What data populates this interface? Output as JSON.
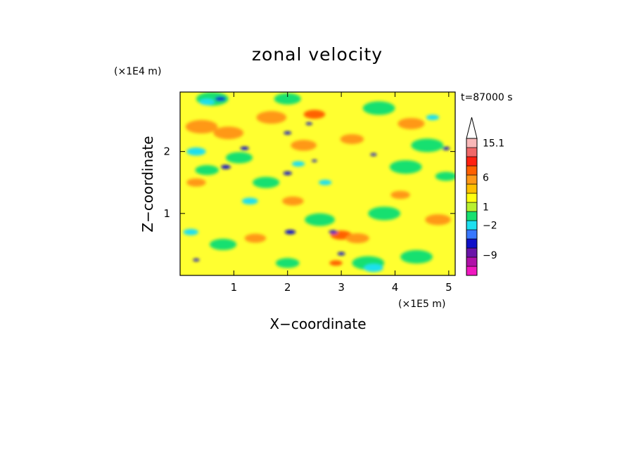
{
  "chart_data": {
    "type": "heatmap",
    "title": "zonal velocity",
    "xlabel": "X−coordinate",
    "ylabel": "Z−coordinate",
    "x_unit": "(×1E5 m)",
    "y_unit": "(×1E4 m)",
    "time_label": "t=87000 s",
    "xlim": [
      0,
      5.12
    ],
    "ylim": [
      0,
      2.96
    ],
    "x_ticks": [
      1,
      2,
      3,
      4,
      5
    ],
    "y_ticks": [
      1,
      2
    ],
    "colorbar": {
      "colors": [
        "#f018c0",
        "#b010a8",
        "#6a14a8",
        "#1010c8",
        "#3878ff",
        "#1ee0f0",
        "#18e070",
        "#b8f030",
        "#ffff10",
        "#ffc000",
        "#ff9818",
        "#ff6000",
        "#ff2010",
        "#f06868",
        "#f8b8b8"
      ],
      "tick_labels": [
        {
          "text": "−9",
          "level": 2.25
        },
        {
          "text": "−2",
          "level": 5.5
        },
        {
          "text": "1",
          "level": 7.5
        },
        {
          "text": "6",
          "level": 10.75
        },
        {
          "text": "15.1",
          "level": 14.5
        }
      ],
      "extend": "max"
    },
    "field": {
      "background_color": "#ffff30",
      "blobs": [
        {
          "x": 0.4,
          "z": 2.4,
          "color": "#ff9818",
          "size": 0.3
        },
        {
          "x": 0.9,
          "z": 2.3,
          "color": "#ff9818",
          "size": 0.28
        },
        {
          "x": 1.7,
          "z": 2.55,
          "color": "#ff9818",
          "size": 0.28
        },
        {
          "x": 2.5,
          "z": 2.6,
          "color": "#ff6000",
          "size": 0.2
        },
        {
          "x": 2.3,
          "z": 2.1,
          "color": "#ff9818",
          "size": 0.24
        },
        {
          "x": 3.2,
          "z": 2.2,
          "color": "#ff9818",
          "size": 0.22
        },
        {
          "x": 4.3,
          "z": 2.45,
          "color": "#ff9818",
          "size": 0.25
        },
        {
          "x": 3.0,
          "z": 0.65,
          "color": "#ff6000",
          "size": 0.2
        },
        {
          "x": 3.3,
          "z": 0.6,
          "color": "#ff9818",
          "size": 0.22
        },
        {
          "x": 2.9,
          "z": 0.2,
          "color": "#ff6000",
          "size": 0.12
        },
        {
          "x": 4.8,
          "z": 0.9,
          "color": "#ff9818",
          "size": 0.24
        },
        {
          "x": 2.1,
          "z": 1.2,
          "color": "#ff9818",
          "size": 0.2
        },
        {
          "x": 0.3,
          "z": 1.5,
          "color": "#ff9818",
          "size": 0.18
        },
        {
          "x": 1.4,
          "z": 0.6,
          "color": "#ff9818",
          "size": 0.2
        },
        {
          "x": 4.1,
          "z": 1.3,
          "color": "#ff9818",
          "size": 0.18
        },
        {
          "x": 0.6,
          "z": 2.85,
          "color": "#18e070",
          "size": 0.3
        },
        {
          "x": 2.0,
          "z": 2.85,
          "color": "#18e070",
          "size": 0.25
        },
        {
          "x": 3.7,
          "z": 2.7,
          "color": "#18e070",
          "size": 0.3
        },
        {
          "x": 4.6,
          "z": 2.1,
          "color": "#18e070",
          "size": 0.3
        },
        {
          "x": 4.2,
          "z": 1.75,
          "color": "#18e070",
          "size": 0.3
        },
        {
          "x": 3.8,
          "z": 1.0,
          "color": "#18e070",
          "size": 0.3
        },
        {
          "x": 1.6,
          "z": 1.5,
          "color": "#18e070",
          "size": 0.25
        },
        {
          "x": 1.1,
          "z": 1.9,
          "color": "#18e070",
          "size": 0.25
        },
        {
          "x": 0.5,
          "z": 1.7,
          "color": "#18e070",
          "size": 0.22
        },
        {
          "x": 2.6,
          "z": 0.9,
          "color": "#18e070",
          "size": 0.28
        },
        {
          "x": 3.5,
          "z": 0.2,
          "color": "#18e070",
          "size": 0.3
        },
        {
          "x": 4.4,
          "z": 0.3,
          "color": "#18e070",
          "size": 0.3
        },
        {
          "x": 0.8,
          "z": 0.5,
          "color": "#18e070",
          "size": 0.25
        },
        {
          "x": 2.0,
          "z": 0.2,
          "color": "#18e070",
          "size": 0.22
        },
        {
          "x": 4.95,
          "z": 1.6,
          "color": "#18e070",
          "size": 0.2
        },
        {
          "x": 0.3,
          "z": 2.0,
          "color": "#1ee0f0",
          "size": 0.18
        },
        {
          "x": 0.5,
          "z": 2.8,
          "color": "#1ee0f0",
          "size": 0.14
        },
        {
          "x": 1.3,
          "z": 1.2,
          "color": "#1ee0f0",
          "size": 0.15
        },
        {
          "x": 2.2,
          "z": 1.8,
          "color": "#1ee0f0",
          "size": 0.12
        },
        {
          "x": 3.6,
          "z": 0.12,
          "color": "#1ee0f0",
          "size": 0.18
        },
        {
          "x": 4.7,
          "z": 2.55,
          "color": "#1ee0f0",
          "size": 0.12
        },
        {
          "x": 0.2,
          "z": 0.7,
          "color": "#1ee0f0",
          "size": 0.14
        },
        {
          "x": 2.7,
          "z": 1.5,
          "color": "#1ee0f0",
          "size": 0.12
        },
        {
          "x": 0.75,
          "z": 2.85,
          "color": "#1010c8",
          "size": 0.1
        },
        {
          "x": 1.2,
          "z": 2.05,
          "color": "#1010c8",
          "size": 0.08
        },
        {
          "x": 0.85,
          "z": 1.75,
          "color": "#1010c8",
          "size": 0.09
        },
        {
          "x": 2.0,
          "z": 2.3,
          "color": "#1010c8",
          "size": 0.07
        },
        {
          "x": 2.4,
          "z": 2.45,
          "color": "#1010c8",
          "size": 0.06
        },
        {
          "x": 2.0,
          "z": 1.65,
          "color": "#1010c8",
          "size": 0.08
        },
        {
          "x": 2.05,
          "z": 0.7,
          "color": "#1010c8",
          "size": 0.1
        },
        {
          "x": 2.85,
          "z": 0.7,
          "color": "#1010c8",
          "size": 0.08
        },
        {
          "x": 3.0,
          "z": 0.35,
          "color": "#1010c8",
          "size": 0.07
        },
        {
          "x": 3.6,
          "z": 1.95,
          "color": "#1010c8",
          "size": 0.06
        },
        {
          "x": 4.95,
          "z": 2.05,
          "color": "#1010c8",
          "size": 0.07
        },
        {
          "x": 0.3,
          "z": 0.25,
          "color": "#1010c8",
          "size": 0.06
        },
        {
          "x": 2.5,
          "z": 1.85,
          "color": "#1010c8",
          "size": 0.05
        }
      ]
    }
  }
}
